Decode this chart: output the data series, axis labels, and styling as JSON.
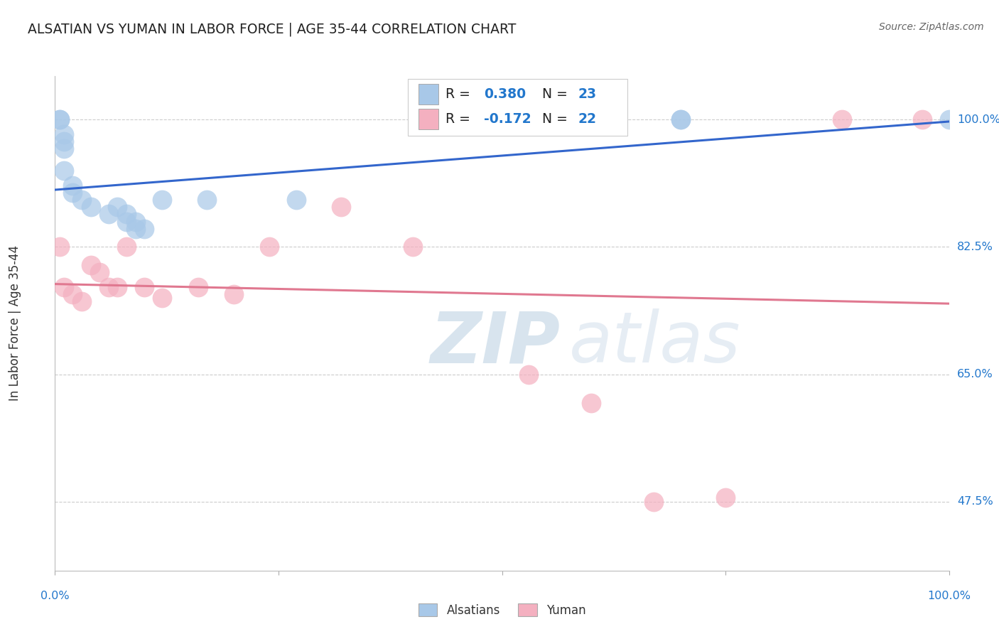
{
  "title": "ALSATIAN VS YUMAN IN LABOR FORCE | AGE 35-44 CORRELATION CHART",
  "source": "Source: ZipAtlas.com",
  "ylabel": "In Labor Force | Age 35-44",
  "ytick_labels": [
    "100.0%",
    "82.5%",
    "65.0%",
    "47.5%"
  ],
  "ytick_values": [
    1.0,
    0.825,
    0.65,
    0.475
  ],
  "xlim": [
    0.0,
    1.0
  ],
  "ylim": [
    0.38,
    1.06
  ],
  "alsatian_color": "#a8c8e8",
  "yuman_color": "#f4b0c0",
  "blue_line_color": "#3366cc",
  "pink_line_color": "#e07890",
  "alsatian_x": [
    0.005,
    0.005,
    0.01,
    0.01,
    0.01,
    0.01,
    0.02,
    0.02,
    0.03,
    0.04,
    0.06,
    0.07,
    0.08,
    0.08,
    0.09,
    0.09,
    0.1,
    0.12,
    0.17,
    0.27,
    0.7,
    0.7,
    1.0
  ],
  "alsatian_y": [
    1.0,
    1.0,
    0.98,
    0.97,
    0.96,
    0.93,
    0.91,
    0.9,
    0.89,
    0.88,
    0.87,
    0.88,
    0.87,
    0.86,
    0.86,
    0.85,
    0.85,
    0.89,
    0.89,
    0.89,
    1.0,
    1.0,
    1.0
  ],
  "yuman_x": [
    0.005,
    0.01,
    0.02,
    0.03,
    0.04,
    0.05,
    0.06,
    0.07,
    0.08,
    0.1,
    0.12,
    0.16,
    0.2,
    0.24,
    0.32,
    0.4,
    0.53,
    0.6,
    0.67,
    0.75,
    0.88,
    0.97
  ],
  "yuman_y": [
    0.825,
    0.77,
    0.76,
    0.75,
    0.8,
    0.79,
    0.77,
    0.77,
    0.825,
    0.77,
    0.755,
    0.77,
    0.76,
    0.825,
    0.88,
    0.825,
    0.65,
    0.61,
    0.475,
    0.48,
    1.0,
    1.0
  ],
  "background_color": "#ffffff",
  "grid_color": "#cccccc",
  "watermark_zip": "ZIP",
  "watermark_atlas": "atlas",
  "legend_r1": "R = 0.380",
  "legend_n1": "N = 23",
  "legend_r2": "R = -0.172",
  "legend_n2": "N = 22"
}
